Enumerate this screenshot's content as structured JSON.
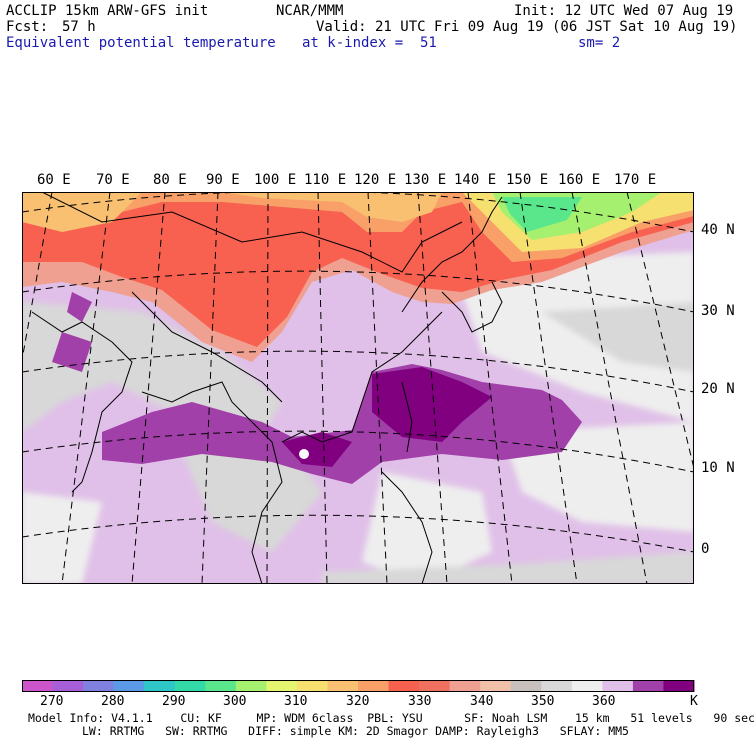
{
  "header": {
    "model": "ACCLIP 15km ARW-GFS init",
    "org": "NCAR/MMM",
    "init": "Init: 12 UTC Wed 07 Aug 19",
    "fcst_label": "Fcst:",
    "fcst_value": "57 h",
    "valid": "Valid: 21 UTC Fri 09 Aug 19 (06 JST Sat 10 Aug 19)",
    "field": "Equivalent potential temperature",
    "level": "at k-index =  51",
    "smooth": "sm= 2"
  },
  "map": {
    "lon_labels": [
      "60 E",
      "70 E",
      "80 E",
      "90 E",
      "100 E",
      "110 E",
      "120 E",
      "130 E",
      "140 E",
      "150 E",
      "160 E",
      "170 E"
    ],
    "lat_labels": [
      "40 N",
      "30 N",
      "20 N",
      "10 N",
      "0"
    ]
  },
  "colorbar": {
    "colors": [
      "#cc55cc",
      "#a65fd8",
      "#8080e0",
      "#5a9ae6",
      "#2ec6c6",
      "#33d9a6",
      "#5ae68a",
      "#a6f070",
      "#e6f570",
      "#f5e070",
      "#f8c070",
      "#f8a068",
      "#f86050",
      "#f07060",
      "#f0a090",
      "#f0c0a8",
      "#c8c0bc",
      "#d8d8d8",
      "#eeeeee",
      "#e0c0e8",
      "#a040a8",
      "#800080"
    ],
    "labels": [
      "270",
      "280",
      "290",
      "300",
      "310",
      "320",
      "330",
      "340",
      "350",
      "360"
    ],
    "unit": "K"
  },
  "footer": {
    "line1": "Model Info: V4.1.1    CU: KF     MP: WDM 6class  PBL: YSU      SF: Noah LSM    15 km   51 levels   90 sec",
    "line2": "LW: RRTMG   SW: RRTMG   DIFF: simple KM: 2D Smagor DAMP: Rayleigh3   SFLAY: MM5"
  }
}
